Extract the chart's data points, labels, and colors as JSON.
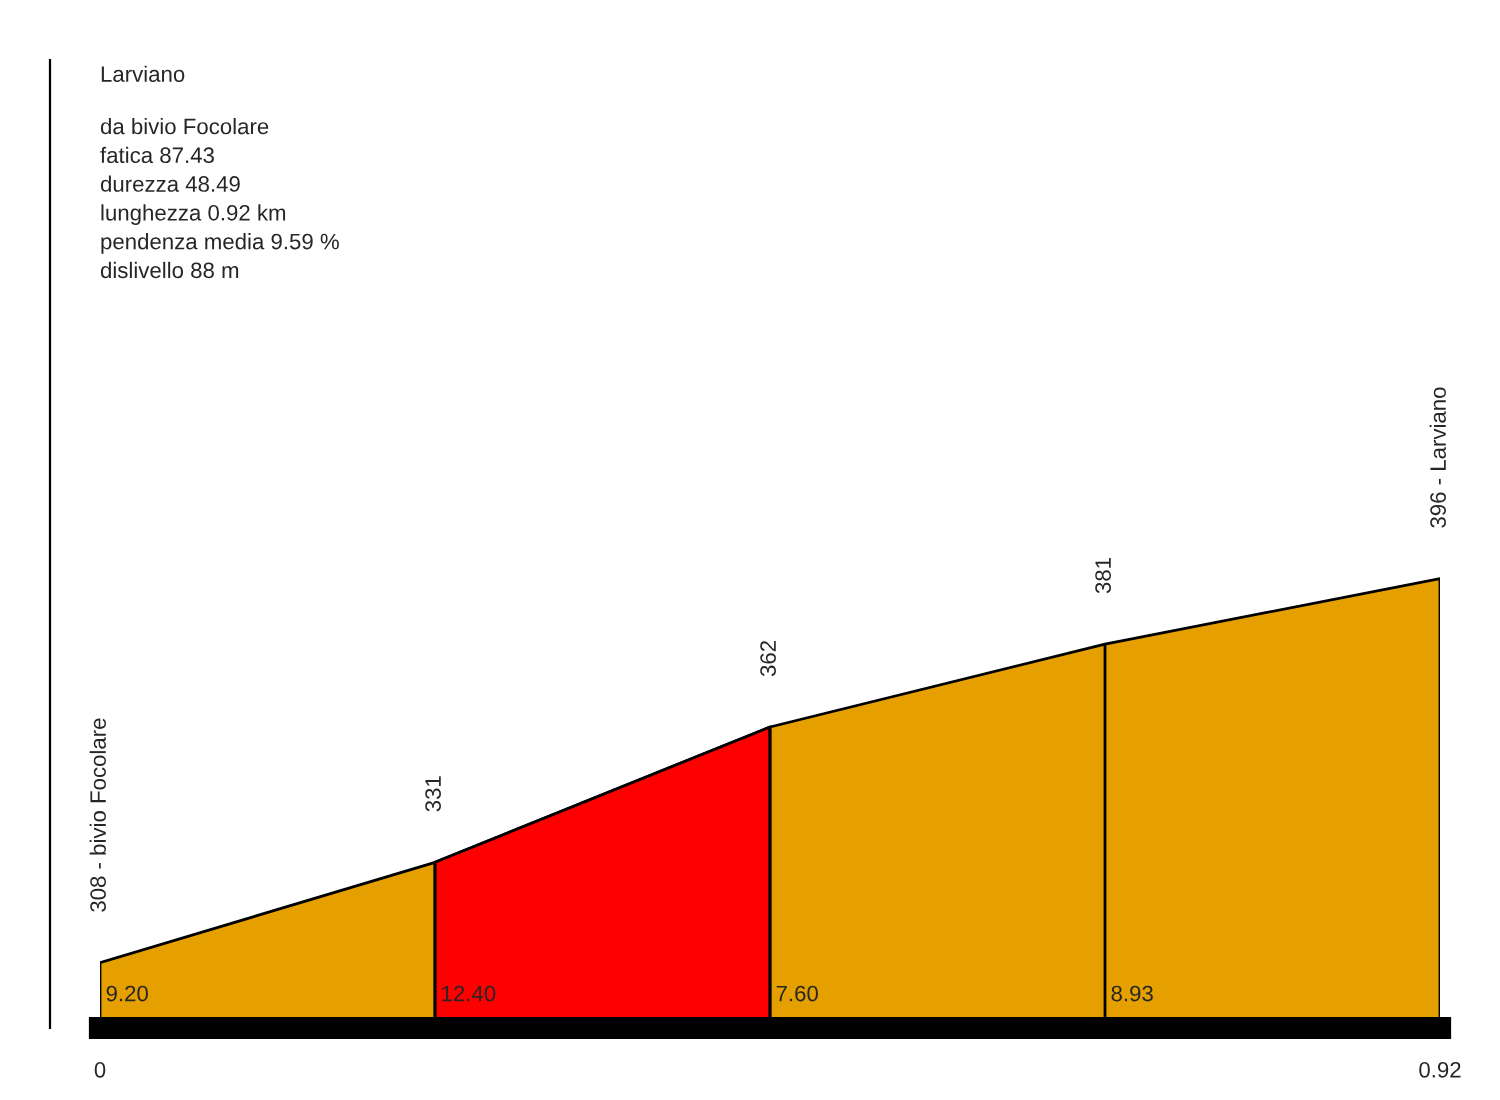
{
  "chart_data": {
    "type": "area",
    "title": "Larviano",
    "annotations": [
      "da bivio Focolare\nfatica 87.43\ndurezza 48.49\nlunghezza 0.92 km\npendenza media 9.59 %\ndislivello 88 m",
      "9.20",
      "12.40",
      "7.60",
      "8.93"
    ],
    "series": [
      {
        "x": [
          0,
          0.23,
          0.46,
          0.69,
          0.92
        ],
        "values": [
          308,
          331,
          362,
          381,
          396
        ],
        "value_labels": [
          "308 - bivio Focolare",
          "331",
          "362",
          "381",
          "396 - Larviano"
        ],
        "color": "#e5a000"
      },
      {
        "x": [
          0.23,
          0.46
        ],
        "values": [
          331,
          362
        ],
        "color": "#ff0000"
      }
    ],
    "xlim": [
      0,
      0.92
    ],
    "xticks": [
      {
        "value": 0,
        "label": "0"
      },
      {
        "value": 0.92,
        "label": "0.92"
      }
    ],
    "tick_labels": "x",
    "grid": false,
    "legend": false
  }
}
